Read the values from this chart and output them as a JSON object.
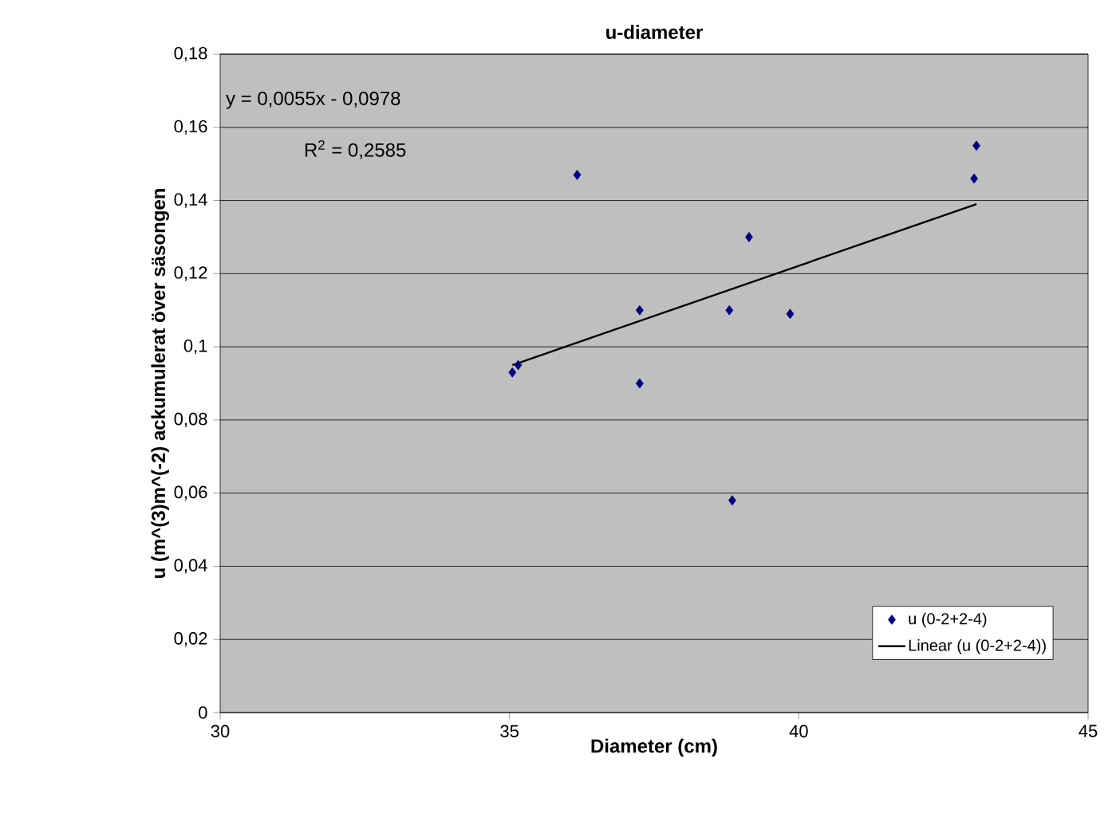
{
  "chart_data": {
    "type": "scatter",
    "title": "u-diameter",
    "xlabel": "Diameter (cm)",
    "ylabel": "u (m^(3)m^(-2) ackumulerat över säsongen",
    "annotations": [
      "y = 0,0055x - 0,0978",
      "R$^{2}$ = 0,2585"
    ],
    "xlim": [
      30,
      45
    ],
    "xticks": [
      30,
      35,
      40,
      45
    ],
    "ylim": [
      0,
      0.18
    ],
    "yticks": [
      {
        "value": 0,
        "label": "0"
      },
      {
        "value": 0.02,
        "label": "0,02"
      },
      {
        "value": 0.04,
        "label": "0,04"
      },
      {
        "value": 0.06,
        "label": "0,06"
      },
      {
        "value": 0.08,
        "label": "0,08"
      },
      {
        "value": 0.1,
        "label": "0,1"
      },
      {
        "value": 0.12,
        "label": "0,12"
      },
      {
        "value": 0.14,
        "label": "0,14"
      },
      {
        "value": 0.16,
        "label": "0,16"
      },
      {
        "value": 0.18,
        "label": "0,18"
      }
    ],
    "grid": "y",
    "legend": "bottom right",
    "series": [
      {
        "name": "u (0-2+2-4)",
        "marker": "diamond",
        "color": "#000080",
        "x": [
          35.05,
          35.15,
          36.17,
          37.25,
          37.25,
          38.8,
          38.85,
          39.14,
          39.85,
          43.03,
          43.07
        ],
        "values": [
          0.093,
          0.095,
          0.147,
          0.11,
          0.09,
          0.11,
          0.058,
          0.13,
          0.109,
          0.146,
          0.155
        ]
      },
      {
        "name": "Linear (u (0-2+2-4))",
        "type": "line",
        "marker": "none",
        "line_style": "solid",
        "color": "#000000",
        "x": [
          35.05,
          43.07
        ],
        "values": [
          0.095,
          0.139
        ]
      }
    ]
  }
}
